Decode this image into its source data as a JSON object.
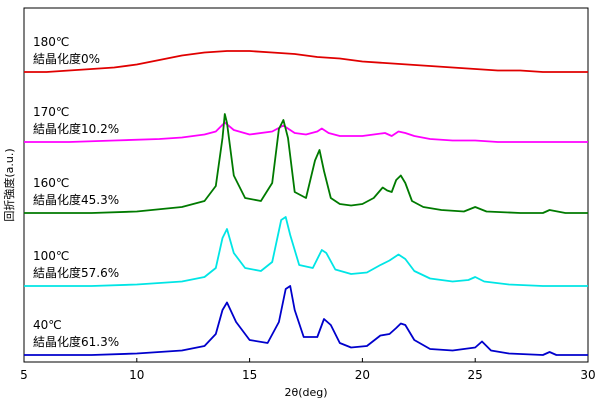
{
  "chart_data": {
    "type": "line",
    "xlabel": "2θ(deg)",
    "ylabel": "回折強度(a.u.)",
    "xlim": [
      5,
      30
    ],
    "xticks": [
      "5",
      "10",
      "15",
      "20",
      "25",
      "30"
    ],
    "grid": false,
    "series": [
      {
        "name": "180℃ 結晶化度0%",
        "temp_label": "180℃",
        "cryst_label": "結晶化度0%",
        "color": "#e00000",
        "x": [
          5,
          6,
          7,
          8,
          9,
          10,
          11,
          12,
          13,
          14,
          15,
          16,
          17,
          18,
          19,
          20,
          21,
          22,
          23,
          24,
          25,
          26,
          27,
          28,
          29,
          30
        ],
        "y": [
          0,
          0,
          1,
          2,
          3,
          5,
          8,
          11,
          13,
          14,
          14,
          13,
          12,
          10,
          9,
          7,
          6,
          5,
          4,
          3,
          2,
          1,
          1,
          0,
          0,
          0
        ]
      },
      {
        "name": "170℃ 結晶化度10.2%",
        "temp_label": "170℃",
        "cryst_label": "結晶化度10.2%",
        "color": "#ff00ff",
        "x": [
          5,
          7,
          9,
          11,
          12,
          13,
          13.5,
          13.9,
          14.3,
          15,
          16,
          16.5,
          17,
          17.5,
          18,
          18.2,
          18.5,
          19,
          20,
          20.5,
          21,
          21.3,
          21.6,
          21.9,
          22.3,
          23,
          24,
          25,
          26,
          28,
          30
        ],
        "y": [
          0,
          0,
          1,
          2,
          3,
          5,
          7,
          13,
          8,
          5,
          7,
          11,
          6,
          5,
          7,
          9,
          6,
          4,
          4,
          5,
          6,
          4,
          7,
          6,
          4,
          2,
          1,
          1,
          0,
          0,
          0
        ]
      },
      {
        "name": "160℃ 結晶化度45.3%",
        "temp_label": "160℃",
        "cryst_label": "結晶化度45.3%",
        "color": "#007a00",
        "x": [
          5,
          8,
          10,
          12,
          13,
          13.5,
          13.8,
          13.9,
          14.0,
          14.3,
          14.8,
          15.5,
          16.0,
          16.3,
          16.5,
          16.7,
          17.0,
          17.5,
          17.9,
          18.1,
          18.3,
          18.6,
          19.0,
          19.5,
          20.0,
          20.5,
          20.9,
          21.1,
          21.3,
          21.5,
          21.7,
          21.9,
          22.2,
          22.7,
          23.5,
          24.5,
          25.0,
          25.5,
          27.0,
          28.0,
          28.3,
          29.0,
          30.0
        ],
        "y": [
          0,
          0,
          1,
          4,
          8,
          18,
          50,
          66,
          60,
          25,
          10,
          8,
          20,
          56,
          62,
          50,
          14,
          10,
          35,
          42,
          28,
          10,
          6,
          5,
          6,
          10,
          17,
          15,
          14,
          22,
          25,
          20,
          8,
          4,
          2,
          1,
          4,
          1,
          0,
          0,
          2,
          0,
          0
        ]
      },
      {
        "name": "100℃ 結晶化度57.6%",
        "temp_label": "100℃",
        "cryst_label": "結晶化度57.6%",
        "color": "#00e5e5",
        "x": [
          5,
          8,
          10,
          12,
          13,
          13.5,
          13.8,
          14.0,
          14.3,
          14.8,
          15.5,
          16.0,
          16.4,
          16.6,
          16.8,
          17.2,
          17.8,
          18.2,
          18.4,
          18.8,
          19.5,
          20.2,
          20.8,
          21.2,
          21.6,
          21.9,
          22.3,
          23.0,
          24.0,
          24.7,
          25.0,
          25.4,
          26.5,
          28.0,
          30.0
        ],
        "y": [
          0,
          0,
          1,
          3,
          6,
          12,
          32,
          38,
          22,
          12,
          10,
          16,
          44,
          46,
          34,
          14,
          12,
          24,
          22,
          11,
          8,
          9,
          14,
          17,
          21,
          18,
          10,
          5,
          3,
          4,
          6,
          3,
          1,
          0,
          0
        ]
      },
      {
        "name": "40℃ 結晶化度61.3%",
        "temp_label": "40℃",
        "cryst_label": "結晶化度61.3%",
        "color": "#0000cc",
        "x": [
          5,
          8,
          10,
          12,
          13,
          13.5,
          13.8,
          14.0,
          14.4,
          15.0,
          15.8,
          16.3,
          16.6,
          16.8,
          17.0,
          17.4,
          18.0,
          18.3,
          18.6,
          19.0,
          19.5,
          20.2,
          20.8,
          21.2,
          21.5,
          21.7,
          21.9,
          22.3,
          23.0,
          24.0,
          25.0,
          25.3,
          25.7,
          26.5,
          28.0,
          28.3,
          28.6,
          30.0
        ],
        "y": [
          0,
          0,
          1,
          3,
          6,
          14,
          30,
          35,
          22,
          10,
          8,
          22,
          44,
          46,
          30,
          12,
          12,
          24,
          20,
          8,
          5,
          6,
          13,
          14,
          18,
          21,
          20,
          10,
          4,
          3,
          5,
          9,
          3,
          1,
          0,
          2,
          0,
          0
        ]
      }
    ]
  }
}
